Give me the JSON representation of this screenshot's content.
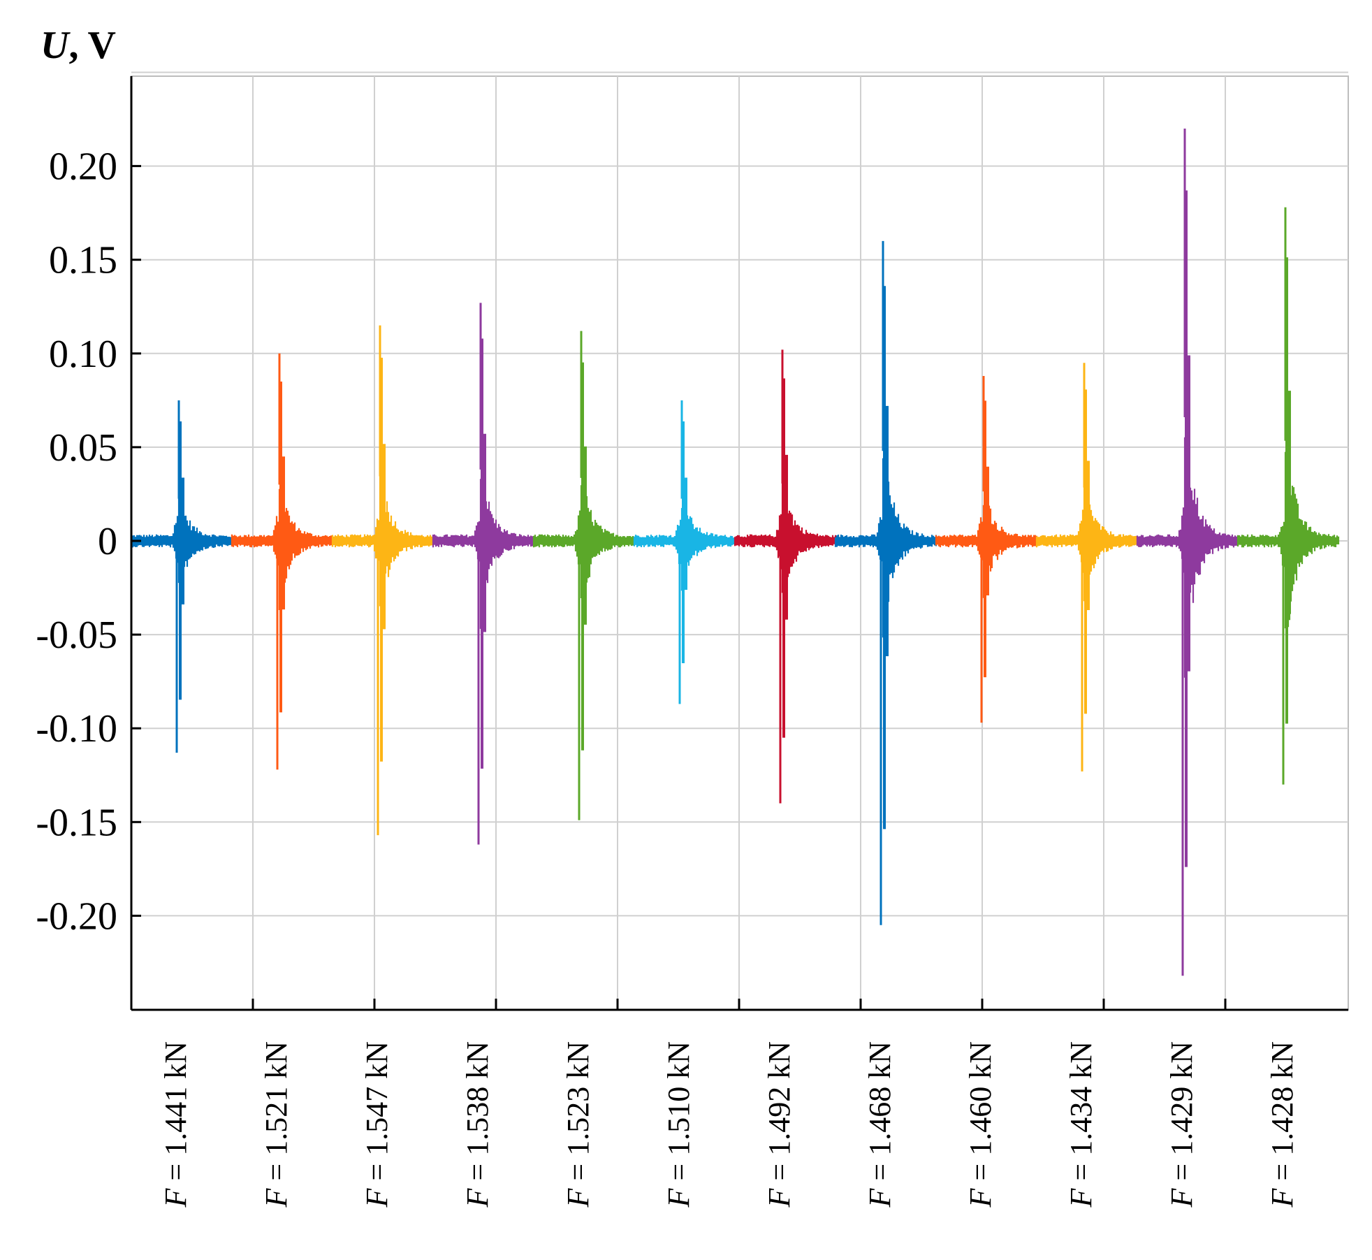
{
  "chart_data": {
    "type": "line",
    "ylabel_var": "U",
    "ylabel_unit": ", V",
    "ylim": [
      -0.25,
      0.25
    ],
    "yticks": [
      {
        "value": 0.2,
        "label": "0.20"
      },
      {
        "value": 0.15,
        "label": "0.15"
      },
      {
        "value": 0.1,
        "label": "0.10"
      },
      {
        "value": 0.05,
        "label": "0.05"
      },
      {
        "value": 0,
        "label": "0"
      },
      {
        "value": -0.05,
        "label": "-0.05"
      },
      {
        "value": -0.1,
        "label": "-0.10"
      },
      {
        "value": -0.15,
        "label": "-0.15"
      },
      {
        "value": -0.2,
        "label": "-0.20"
      }
    ],
    "x_var": "F",
    "x_eq": " = ",
    "grid": true,
    "series": [
      {
        "name": "1.441 kN",
        "color": "#0072BD",
        "peak_pos": 0.075,
        "peak_neg": -0.113
      },
      {
        "name": "1.521 kN",
        "color": "#FF5A14",
        "peak_pos": 0.1,
        "peak_neg": -0.122
      },
      {
        "name": "1.547 kN",
        "color": "#FDB515",
        "peak_pos": 0.115,
        "peak_neg": -0.157
      },
      {
        "name": "1.538 kN",
        "color": "#8E3A9E",
        "peak_pos": 0.127,
        "peak_neg": -0.162
      },
      {
        "name": "1.523 kN",
        "color": "#5BA829",
        "peak_pos": 0.112,
        "peak_neg": -0.149
      },
      {
        "name": "1.510 kN",
        "color": "#19B5E5",
        "peak_pos": 0.075,
        "peak_neg": -0.087
      },
      {
        "name": "1.492 kN",
        "color": "#C8102E",
        "peak_pos": 0.102,
        "peak_neg": -0.14
      },
      {
        "name": "1.468 kN",
        "color": "#0072BD",
        "peak_pos": 0.16,
        "peak_neg": -0.205
      },
      {
        "name": "1.460 kN",
        "color": "#FF5A14",
        "peak_pos": 0.088,
        "peak_neg": -0.097
      },
      {
        "name": "1.434 kN",
        "color": "#FDB515",
        "peak_pos": 0.095,
        "peak_neg": -0.123
      },
      {
        "name": "1.429 kN",
        "color": "#8E3A9E",
        "peak_pos": 0.22,
        "peak_neg": -0.232
      },
      {
        "name": "1.428 kN",
        "color": "#5BA829",
        "peak_pos": 0.178,
        "peak_neg": -0.13
      }
    ]
  }
}
